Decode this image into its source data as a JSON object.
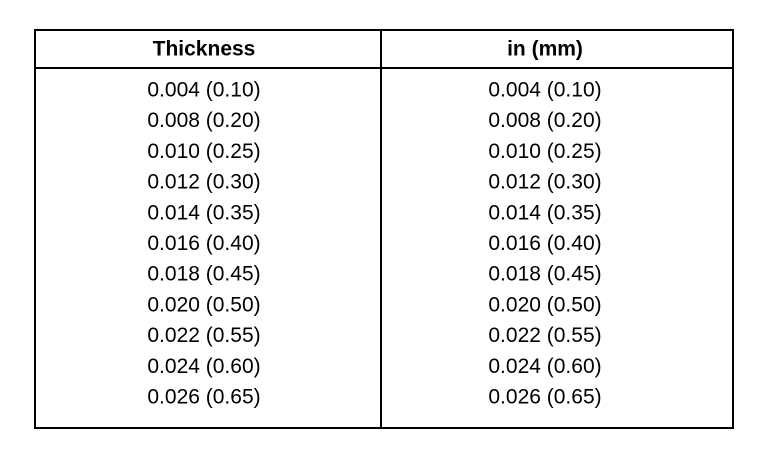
{
  "table": {
    "header": [
      "Thickness",
      "in (mm)"
    ],
    "rows": [
      [
        "0.004 (0.10)",
        "0.004 (0.10)"
      ],
      [
        "0.008 (0.20)",
        "0.008 (0.20)"
      ],
      [
        "0.010 (0.25)",
        "0.010 (0.25)"
      ],
      [
        "0.012 (0.30)",
        "0.012 (0.30)"
      ],
      [
        "0.014 (0.35)",
        "0.014 (0.35)"
      ],
      [
        "0.016 (0.40)",
        "0.016 (0.40)"
      ],
      [
        "0.018 (0.45)",
        "0.018 (0.45)"
      ],
      [
        "0.020 (0.50)",
        "0.020 (0.50)"
      ],
      [
        "0.022 (0.55)",
        "0.022 (0.55)"
      ],
      [
        "0.024 (0.60)",
        "0.024 (0.60)"
      ],
      [
        "0.026 (0.65)",
        "0.026 (0.65)"
      ]
    ]
  }
}
